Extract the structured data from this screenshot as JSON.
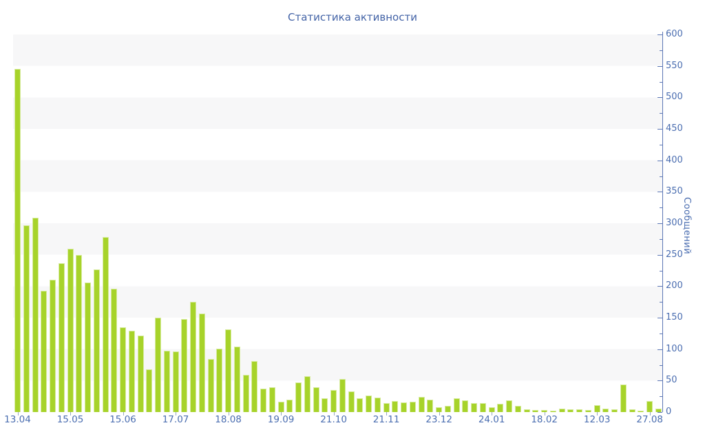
{
  "chart_data": {
    "type": "bar",
    "title": "Статистика активности",
    "ylabel": "Сообщений",
    "xlabel": "",
    "ylim": [
      0,
      600
    ],
    "y_major_step": 50,
    "y_minor_step": 25,
    "grid": "alternating-horizontal-bands",
    "legend": "none",
    "values": [
      545,
      297,
      309,
      193,
      210,
      236,
      259,
      250,
      206,
      227,
      278,
      196,
      135,
      129,
      122,
      68,
      150,
      98,
      96,
      148,
      175,
      157,
      84,
      101,
      131,
      104,
      59,
      81,
      37,
      39,
      16,
      20,
      47,
      57,
      39,
      22,
      35,
      53,
      33,
      22,
      26,
      23,
      14,
      17,
      15,
      16,
      24,
      20,
      8,
      10,
      22,
      19,
      14,
      14,
      8,
      13,
      19,
      10,
      4,
      3,
      3,
      2,
      6,
      4,
      4,
      3,
      11,
      5,
      4,
      44,
      4,
      2,
      18,
      5
    ],
    "x_tick_labels": [
      {
        "label": "13.04",
        "bar_index": 0
      },
      {
        "label": "15.05",
        "bar_index": 6
      },
      {
        "label": "15.06",
        "bar_index": 12
      },
      {
        "label": "17.07",
        "bar_index": 18
      },
      {
        "label": "18.08",
        "bar_index": 24
      },
      {
        "label": "19.09",
        "bar_index": 30
      },
      {
        "label": "21.10",
        "bar_index": 36
      },
      {
        "label": "21.11",
        "bar_index": 42
      },
      {
        "label": "23.12",
        "bar_index": 48
      },
      {
        "label": "24.01",
        "bar_index": 54
      },
      {
        "label": "18.02",
        "bar_index": 60
      },
      {
        "label": "12.03",
        "bar_index": 66
      },
      {
        "label": "27.08",
        "bar_index": 72
      }
    ],
    "colors": {
      "bar_fill": "#a7d32a",
      "title_text": "#4262a6",
      "axis_text": "#4a6db0",
      "axis_line": "#5b76b5",
      "x_tick_mark": "#97a5c6",
      "band_gray": "#f7f7f8",
      "band_white": "#ffffff"
    }
  }
}
